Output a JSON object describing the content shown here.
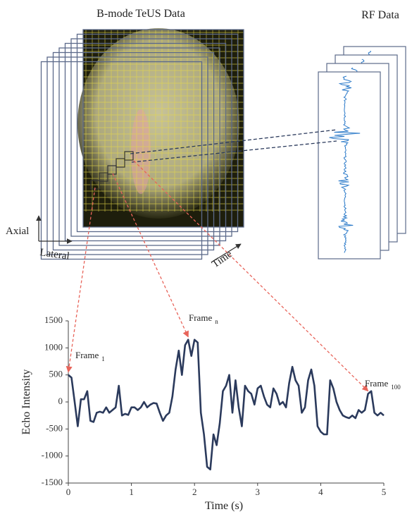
{
  "labels": {
    "bmode": "B-mode TeUS Data",
    "rf": "RF Data",
    "axial": "Axial",
    "lateral": "Lateral",
    "time": "Time"
  },
  "chart_data": {
    "type": "line",
    "xlabel": "Time (s)",
    "ylabel": "Echo Intensity",
    "xlim": [
      0,
      5
    ],
    "xticks": [
      0,
      1,
      2,
      3,
      4,
      5
    ],
    "ylim": [
      -1500,
      1500
    ],
    "yticks": [
      -1500,
      -1000,
      -500,
      0,
      500,
      1000,
      1500
    ],
    "annotations": [
      {
        "text": "Frame",
        "sub": "1"
      },
      {
        "text": "Frame",
        "sub": "n"
      },
      {
        "text": "Frame",
        "sub": "100"
      }
    ],
    "series": [
      {
        "color": "#2b3a5c",
        "x": [
          0,
          0.05,
          0.1,
          0.15,
          0.2,
          0.25,
          0.3,
          0.35,
          0.4,
          0.45,
          0.5,
          0.55,
          0.6,
          0.65,
          0.7,
          0.75,
          0.8,
          0.85,
          0.9,
          0.95,
          1,
          1.05,
          1.1,
          1.15,
          1.2,
          1.25,
          1.3,
          1.35,
          1.4,
          1.45,
          1.5,
          1.55,
          1.6,
          1.65,
          1.7,
          1.75,
          1.8,
          1.85,
          1.9,
          1.95,
          2,
          2.05,
          2.1,
          2.15,
          2.2,
          2.25,
          2.3,
          2.35,
          2.4,
          2.45,
          2.5,
          2.55,
          2.6,
          2.65,
          2.7,
          2.75,
          2.8,
          2.85,
          2.9,
          2.95,
          3,
          3.05,
          3.1,
          3.15,
          3.2,
          3.25,
          3.3,
          3.35,
          3.4,
          3.45,
          3.5,
          3.55,
          3.6,
          3.65,
          3.7,
          3.75,
          3.8,
          3.85,
          3.9,
          3.95,
          4,
          4.05,
          4.1,
          4.15,
          4.2,
          4.25,
          4.3,
          4.35,
          4.4,
          4.45,
          4.5,
          4.55,
          4.6,
          4.65,
          4.7,
          4.75,
          4.8,
          4.85,
          4.9,
          4.95,
          5
        ],
        "values": [
          500,
          450,
          0,
          -450,
          50,
          50,
          200,
          -350,
          -370,
          -200,
          -180,
          -200,
          -100,
          -200,
          -150,
          -100,
          300,
          -250,
          -220,
          -240,
          -100,
          -100,
          -150,
          -100,
          0,
          -100,
          -50,
          -20,
          -30,
          -200,
          -350,
          -250,
          -200,
          100,
          600,
          950,
          500,
          1050,
          1150,
          850,
          1150,
          1100,
          -200,
          -600,
          -1200,
          -1250,
          -600,
          -800,
          -400,
          200,
          300,
          500,
          -200,
          400,
          -100,
          -450,
          300,
          200,
          150,
          -50,
          250,
          300,
          100,
          -50,
          -100,
          250,
          150,
          -50,
          0,
          -100,
          350,
          650,
          400,
          300,
          -200,
          -100,
          400,
          600,
          300,
          -450,
          -550,
          -600,
          -600,
          400,
          250,
          0,
          -150,
          -250,
          -280,
          -300,
          -250,
          -300,
          -150,
          -200,
          -150,
          150,
          200,
          -200,
          -250,
          -200,
          -250
        ]
      }
    ]
  }
}
